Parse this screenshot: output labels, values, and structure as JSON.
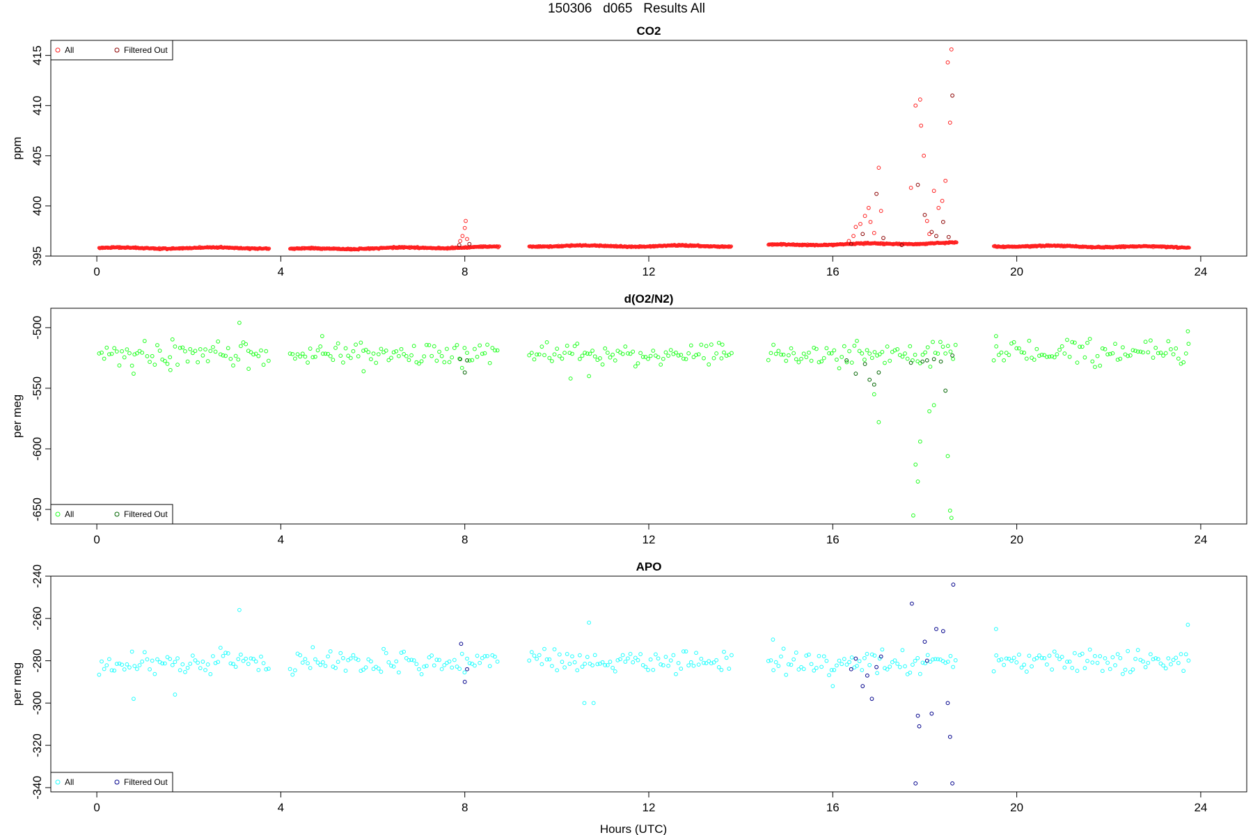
{
  "page": {
    "title": "150306   d065   Results All",
    "xlabel": "Hours (UTC)"
  },
  "chart_data": [
    {
      "type": "scatter",
      "title": "CO2",
      "ylabel": "ppm",
      "xlim": [
        -1.0,
        25.0
      ],
      "ylim": [
        395.0,
        416.5
      ],
      "xticks": [
        0,
        4,
        8,
        12,
        16,
        20,
        24
      ],
      "yticks": [
        395,
        400,
        405,
        410,
        415
      ],
      "legend": {
        "position": "top-left",
        "entries": [
          {
            "label": "All",
            "color": "#ff2020"
          },
          {
            "label": "Filtered Out",
            "color": "#8b0000"
          }
        ]
      },
      "segments": [
        {
          "x": [
            0.05,
            3.75
          ],
          "y": [
            395.8,
            395.8
          ]
        },
        {
          "x": [
            4.2,
            8.75
          ],
          "y": [
            395.7,
            395.9
          ]
        },
        {
          "x": [
            9.4,
            13.8
          ],
          "y": [
            396.0,
            396.0
          ]
        },
        {
          "x": [
            14.6,
            18.7
          ],
          "y": [
            396.1,
            396.3
          ]
        },
        {
          "x": [
            19.5,
            23.75
          ],
          "y": [
            396.0,
            395.9
          ]
        }
      ],
      "series": [
        {
          "name": "All",
          "color": "#ff2020",
          "x": [
            7.9,
            7.95,
            8.0,
            8.02,
            8.05,
            16.35,
            16.45,
            16.5,
            16.6,
            16.7,
            16.78,
            16.82,
            16.9,
            17.0,
            17.05,
            17.7,
            17.8,
            17.9,
            17.92,
            17.98,
            18.05,
            18.1,
            18.2,
            18.3,
            18.38,
            18.45,
            18.5,
            18.55,
            18.58
          ],
          "y": [
            396.5,
            397.0,
            397.8,
            398.5,
            396.7,
            396.5,
            397.0,
            397.9,
            398.2,
            399.0,
            399.8,
            398.4,
            397.3,
            403.8,
            399.5,
            401.8,
            410.0,
            410.6,
            408.0,
            405.0,
            398.5,
            397.2,
            401.5,
            399.8,
            400.5,
            402.5,
            414.3,
            408.3,
            415.6
          ]
        },
        {
          "name": "Filtered Out",
          "color": "#8b0000",
          "x": [
            7.88,
            8.1,
            16.4,
            16.65,
            16.95,
            17.1,
            17.5,
            17.85,
            18.0,
            18.15,
            18.25,
            18.4,
            18.52,
            18.6
          ],
          "y": [
            396.1,
            396.2,
            396.2,
            397.2,
            401.2,
            396.8,
            396.1,
            402.1,
            399.1,
            397.4,
            397.0,
            398.4,
            396.9,
            411.0
          ]
        }
      ]
    },
    {
      "type": "scatter",
      "title": "d(O2/N2)",
      "ylabel": "per meg",
      "xlim": [
        -1.0,
        25.0
      ],
      "ylim": [
        -662.0,
        -484.0
      ],
      "xticks": [
        0,
        4,
        8,
        12,
        16,
        20,
        24
      ],
      "yticks": [
        -650,
        -600,
        -550,
        -500
      ],
      "legend": {
        "position": "bottom-left",
        "entries": [
          {
            "label": "All",
            "color": "#20ff20"
          },
          {
            "label": "Filtered Out",
            "color": "#006400"
          }
        ]
      },
      "segments": [
        {
          "x": [
            0.05,
            3.75
          ],
          "y": [
            -522,
            -522
          ]
        },
        {
          "x": [
            4.2,
            8.75
          ],
          "y": [
            -522,
            -522
          ]
        },
        {
          "x": [
            9.4,
            13.8
          ],
          "y": [
            -521,
            -521
          ]
        },
        {
          "x": [
            14.6,
            18.7
          ],
          "y": [
            -522,
            -522
          ]
        },
        {
          "x": [
            19.5,
            23.75
          ],
          "y": [
            -521,
            -521
          ]
        }
      ],
      "series": [
        {
          "name": "All",
          "color": "#20ff20",
          "x": [
            3.1,
            3.3,
            4.9,
            10.7,
            10.3,
            16.9,
            17.0,
            17.75,
            17.8,
            17.85,
            17.9,
            18.1,
            18.2,
            18.5,
            18.55,
            18.58,
            0.8,
            1.6,
            5.8,
            13.6,
            19.55,
            23.72
          ],
          "y": [
            -496,
            -534,
            -507,
            -540,
            -542,
            -555,
            -578,
            -655,
            -613,
            -627,
            -594,
            -569,
            -564,
            -606,
            -651,
            -657,
            -538,
            -535,
            -536,
            -514,
            -507,
            -503
          ]
        },
        {
          "name": "Filtered Out",
          "color": "#006400",
          "x": [
            7.9,
            8.0,
            8.05,
            16.3,
            16.5,
            16.7,
            16.8,
            16.9,
            17.0,
            17.7,
            17.95,
            18.05,
            18.2,
            18.35,
            18.45,
            18.6
          ],
          "y": [
            -526,
            -537,
            -527,
            -527,
            -538,
            -530,
            -543,
            -547,
            -537,
            -529,
            -528,
            -527,
            -526,
            -528,
            -552,
            -523
          ]
        }
      ]
    },
    {
      "type": "scatter",
      "title": "APO",
      "ylabel": "per meg",
      "xlim": [
        -1.0,
        25.0
      ],
      "ylim": [
        -342.0,
        -240.0
      ],
      "xticks": [
        0,
        4,
        8,
        12,
        16,
        20,
        24
      ],
      "yticks": [
        -340,
        -320,
        -300,
        -280,
        -260,
        -240
      ],
      "legend": {
        "position": "bottom-left",
        "entries": [
          {
            "label": "All",
            "color": "#20ffff"
          },
          {
            "label": "Filtered Out",
            "color": "#00008b"
          }
        ]
      },
      "segments": [
        {
          "x": [
            0.05,
            3.75
          ],
          "y": [
            -281,
            -281
          ]
        },
        {
          "x": [
            4.2,
            8.75
          ],
          "y": [
            -281,
            -281
          ]
        },
        {
          "x": [
            9.4,
            13.8
          ],
          "y": [
            -280,
            -280
          ]
        },
        {
          "x": [
            14.6,
            18.7
          ],
          "y": [
            -281,
            -281
          ]
        },
        {
          "x": [
            19.5,
            23.75
          ],
          "y": [
            -280,
            -280
          ]
        }
      ],
      "series": [
        {
          "name": "All",
          "color": "#20ffff",
          "x": [
            3.1,
            0.8,
            1.7,
            10.6,
            10.8,
            10.7,
            14.7,
            19.55,
            23.72,
            16.0
          ],
          "y": [
            -256,
            -298,
            -296,
            -300,
            -300,
            -262,
            -270,
            -265,
            -263,
            -292
          ]
        },
        {
          "name": "Filtered Out",
          "color": "#00008b",
          "x": [
            7.92,
            8.0,
            8.05,
            16.4,
            16.5,
            16.65,
            16.75,
            16.85,
            16.95,
            17.05,
            17.72,
            17.8,
            17.85,
            17.88,
            18.0,
            18.05,
            18.15,
            18.25,
            18.4,
            18.5,
            18.55,
            18.6,
            18.62
          ],
          "y": [
            -272,
            -290,
            -284,
            -284,
            -279,
            -292,
            -287,
            -298,
            -283,
            -278,
            -253,
            -338,
            -306,
            -311,
            -271,
            -280,
            -305,
            -265,
            -266,
            -300,
            -316,
            -338,
            -244
          ]
        }
      ]
    }
  ]
}
